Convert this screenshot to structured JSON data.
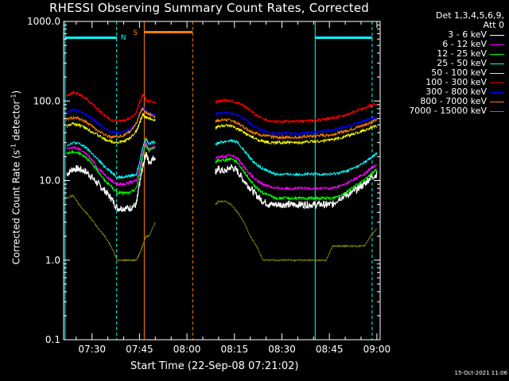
{
  "title": "RHESSI Observing Summary Count Rates, Corrected",
  "ylabel_prefix": "Corrected Count Rate (s",
  "ylabel_sup1": "-1",
  "ylabel_mid": " detector",
  "ylabel_sup2": "-1",
  "ylabel_suffix": ")",
  "xlabel": "Start Time (22-Sep-08 07:21:02)",
  "datestamp": "15-Oct-2021 11:06",
  "legend": {
    "header_line1": "Det 1,3,4,5,6,9,",
    "header_line2": "Att 0"
  },
  "flag_labels": {
    "night": "N",
    "saa": "S"
  },
  "colors": {
    "night": "#00ffff",
    "saa": "#ff8000",
    "night_line": "#00e0ff"
  },
  "chart_data": {
    "type": "line",
    "y_scale": "log",
    "ylim": [
      0.1,
      1000
    ],
    "y_ticks": [
      "1000.0",
      "100.0",
      "10.0",
      "1.0",
      "0.1"
    ],
    "x_ticks": [
      "07:30",
      "07:45",
      "08:00",
      "08:15",
      "08:30",
      "08:45",
      "09:00"
    ],
    "x_tick_minutes": [
      30,
      45,
      60,
      75,
      90,
      105,
      120
    ],
    "xlim_minutes": [
      21.03,
      121.03
    ],
    "flags": [
      {
        "name": "night",
        "start": 21.5,
        "end": 37.8
      },
      {
        "name": "saa",
        "start": 46.5,
        "end": 61.8
      },
      {
        "name": "night",
        "start": 100.5,
        "end": 118.5
      }
    ],
    "x": [
      22,
      24,
      26,
      28,
      30,
      32,
      34,
      36,
      38,
      40,
      42,
      44,
      45,
      46,
      47,
      48,
      50,
      69,
      70,
      72,
      74,
      76,
      78,
      80,
      82,
      84,
      86,
      88,
      90,
      92,
      94,
      96,
      98,
      100,
      102,
      104,
      106,
      108,
      110,
      112,
      114,
      116,
      118,
      120
    ],
    "series": [
      {
        "name": "3 - 6 keV",
        "color": "#ffffff",
        "values": [
          12,
          14,
          14,
          13,
          11,
          9,
          7.5,
          6,
          4.5,
          4.5,
          4.5,
          5,
          9,
          15,
          22,
          17,
          20,
          13,
          14,
          13,
          15,
          13,
          10,
          8,
          6.5,
          5.5,
          5,
          5,
          5,
          5,
          5,
          5,
          5,
          5,
          5,
          5,
          5,
          6,
          6.5,
          7,
          8,
          9,
          11,
          12
        ]
      },
      {
        "name": "6 - 12 keV",
        "color": "#ff00ff",
        "values": [
          25,
          26,
          25,
          22,
          18,
          14,
          12,
          10,
          9,
          9,
          9.5,
          10,
          14,
          22,
          30,
          25,
          27,
          19,
          20,
          20,
          21,
          19,
          15,
          12,
          10,
          9,
          8.5,
          8,
          8,
          8,
          8,
          8,
          8,
          8,
          8,
          8,
          8,
          8.5,
          9,
          10,
          11,
          12,
          14,
          16
        ]
      },
      {
        "name": "12 - 25 keV",
        "color": "#00ff00",
        "values": [
          22,
          23,
          22,
          20,
          16,
          13,
          10,
          8.5,
          7,
          7,
          7,
          8,
          12,
          20,
          28,
          24,
          26,
          17,
          18,
          18,
          19,
          17,
          13,
          10,
          8,
          7,
          6.5,
          6,
          6,
          6,
          6,
          6,
          6,
          6,
          6,
          6,
          6,
          6.5,
          7,
          8,
          9,
          10,
          12,
          14
        ]
      },
      {
        "name": "25 - 50 keV",
        "color": "#00ffff",
        "values": [
          28,
          30,
          29,
          26,
          22,
          18,
          15,
          13,
          11,
          11,
          11.5,
          12,
          17,
          26,
          34,
          29,
          31,
          29,
          30,
          31,
          32,
          30,
          24,
          19,
          16,
          14,
          13,
          12,
          12,
          12,
          12,
          12,
          12,
          12,
          12,
          12,
          12,
          12.5,
          13,
          14,
          15,
          17,
          19,
          22
        ]
      },
      {
        "name": "50 - 100 keV",
        "color": "#ffff00",
        "values": [
          48,
          52,
          50,
          46,
          41,
          37,
          33,
          31,
          30,
          31,
          34,
          42,
          52,
          68,
          62,
          60,
          58,
          46,
          48,
          49,
          48,
          45,
          40,
          36,
          33,
          31,
          30,
          30,
          30,
          30,
          30,
          30,
          31,
          31,
          31,
          32,
          33,
          34,
          36,
          38,
          40,
          43,
          46,
          48
        ]
      },
      {
        "name": "100 - 300 keV",
        "color": "#ff0000",
        "values": [
          118,
          128,
          120,
          108,
          92,
          78,
          66,
          58,
          56,
          57,
          60,
          72,
          95,
          120,
          105,
          98,
          96,
          96,
          100,
          102,
          100,
          96,
          87,
          76,
          66,
          60,
          56,
          55,
          55,
          55,
          55,
          55,
          56,
          57,
          58,
          59,
          61,
          64,
          67,
          71,
          76,
          81,
          87,
          92
        ]
      },
      {
        "name": "300 - 800 keV",
        "color": "#0000ff",
        "values": [
          72,
          78,
          74,
          68,
          60,
          52,
          46,
          41,
          40,
          41,
          44,
          52,
          68,
          85,
          76,
          70,
          66,
          68,
          70,
          71,
          70,
          67,
          60,
          52,
          46,
          42,
          40,
          39,
          39,
          39,
          39,
          39,
          40,
          40,
          41,
          42,
          43,
          45,
          47,
          50,
          53,
          56,
          60,
          63
        ]
      },
      {
        "name": "800 - 7000 keV",
        "color": "#ff8000",
        "values": [
          58,
          62,
          60,
          55,
          48,
          42,
          38,
          35,
          35,
          37,
          41,
          52,
          68,
          80,
          72,
          68,
          64,
          56,
          57,
          58,
          57,
          53,
          47,
          42,
          39,
          37,
          36,
          35,
          35,
          35,
          35,
          35,
          36,
          36,
          37,
          37,
          38,
          40,
          42,
          44,
          47,
          50,
          54,
          58
        ]
      },
      {
        "name": "7000 - 15000 keV",
        "color": "#808000",
        "values": [
          6,
          6.5,
          5,
          4,
          3.2,
          2.5,
          2,
          1.5,
          1,
          1,
          1,
          1,
          1.2,
          1.5,
          2,
          2,
          3,
          5,
          5.5,
          5.5,
          5,
          4,
          3,
          2,
          1.5,
          1,
          1,
          1,
          1,
          1,
          1,
          1,
          1,
          1,
          1,
          1,
          1.5,
          1.5,
          1.5,
          1.5,
          1.5,
          1.5,
          2,
          2.5
        ]
      }
    ]
  }
}
